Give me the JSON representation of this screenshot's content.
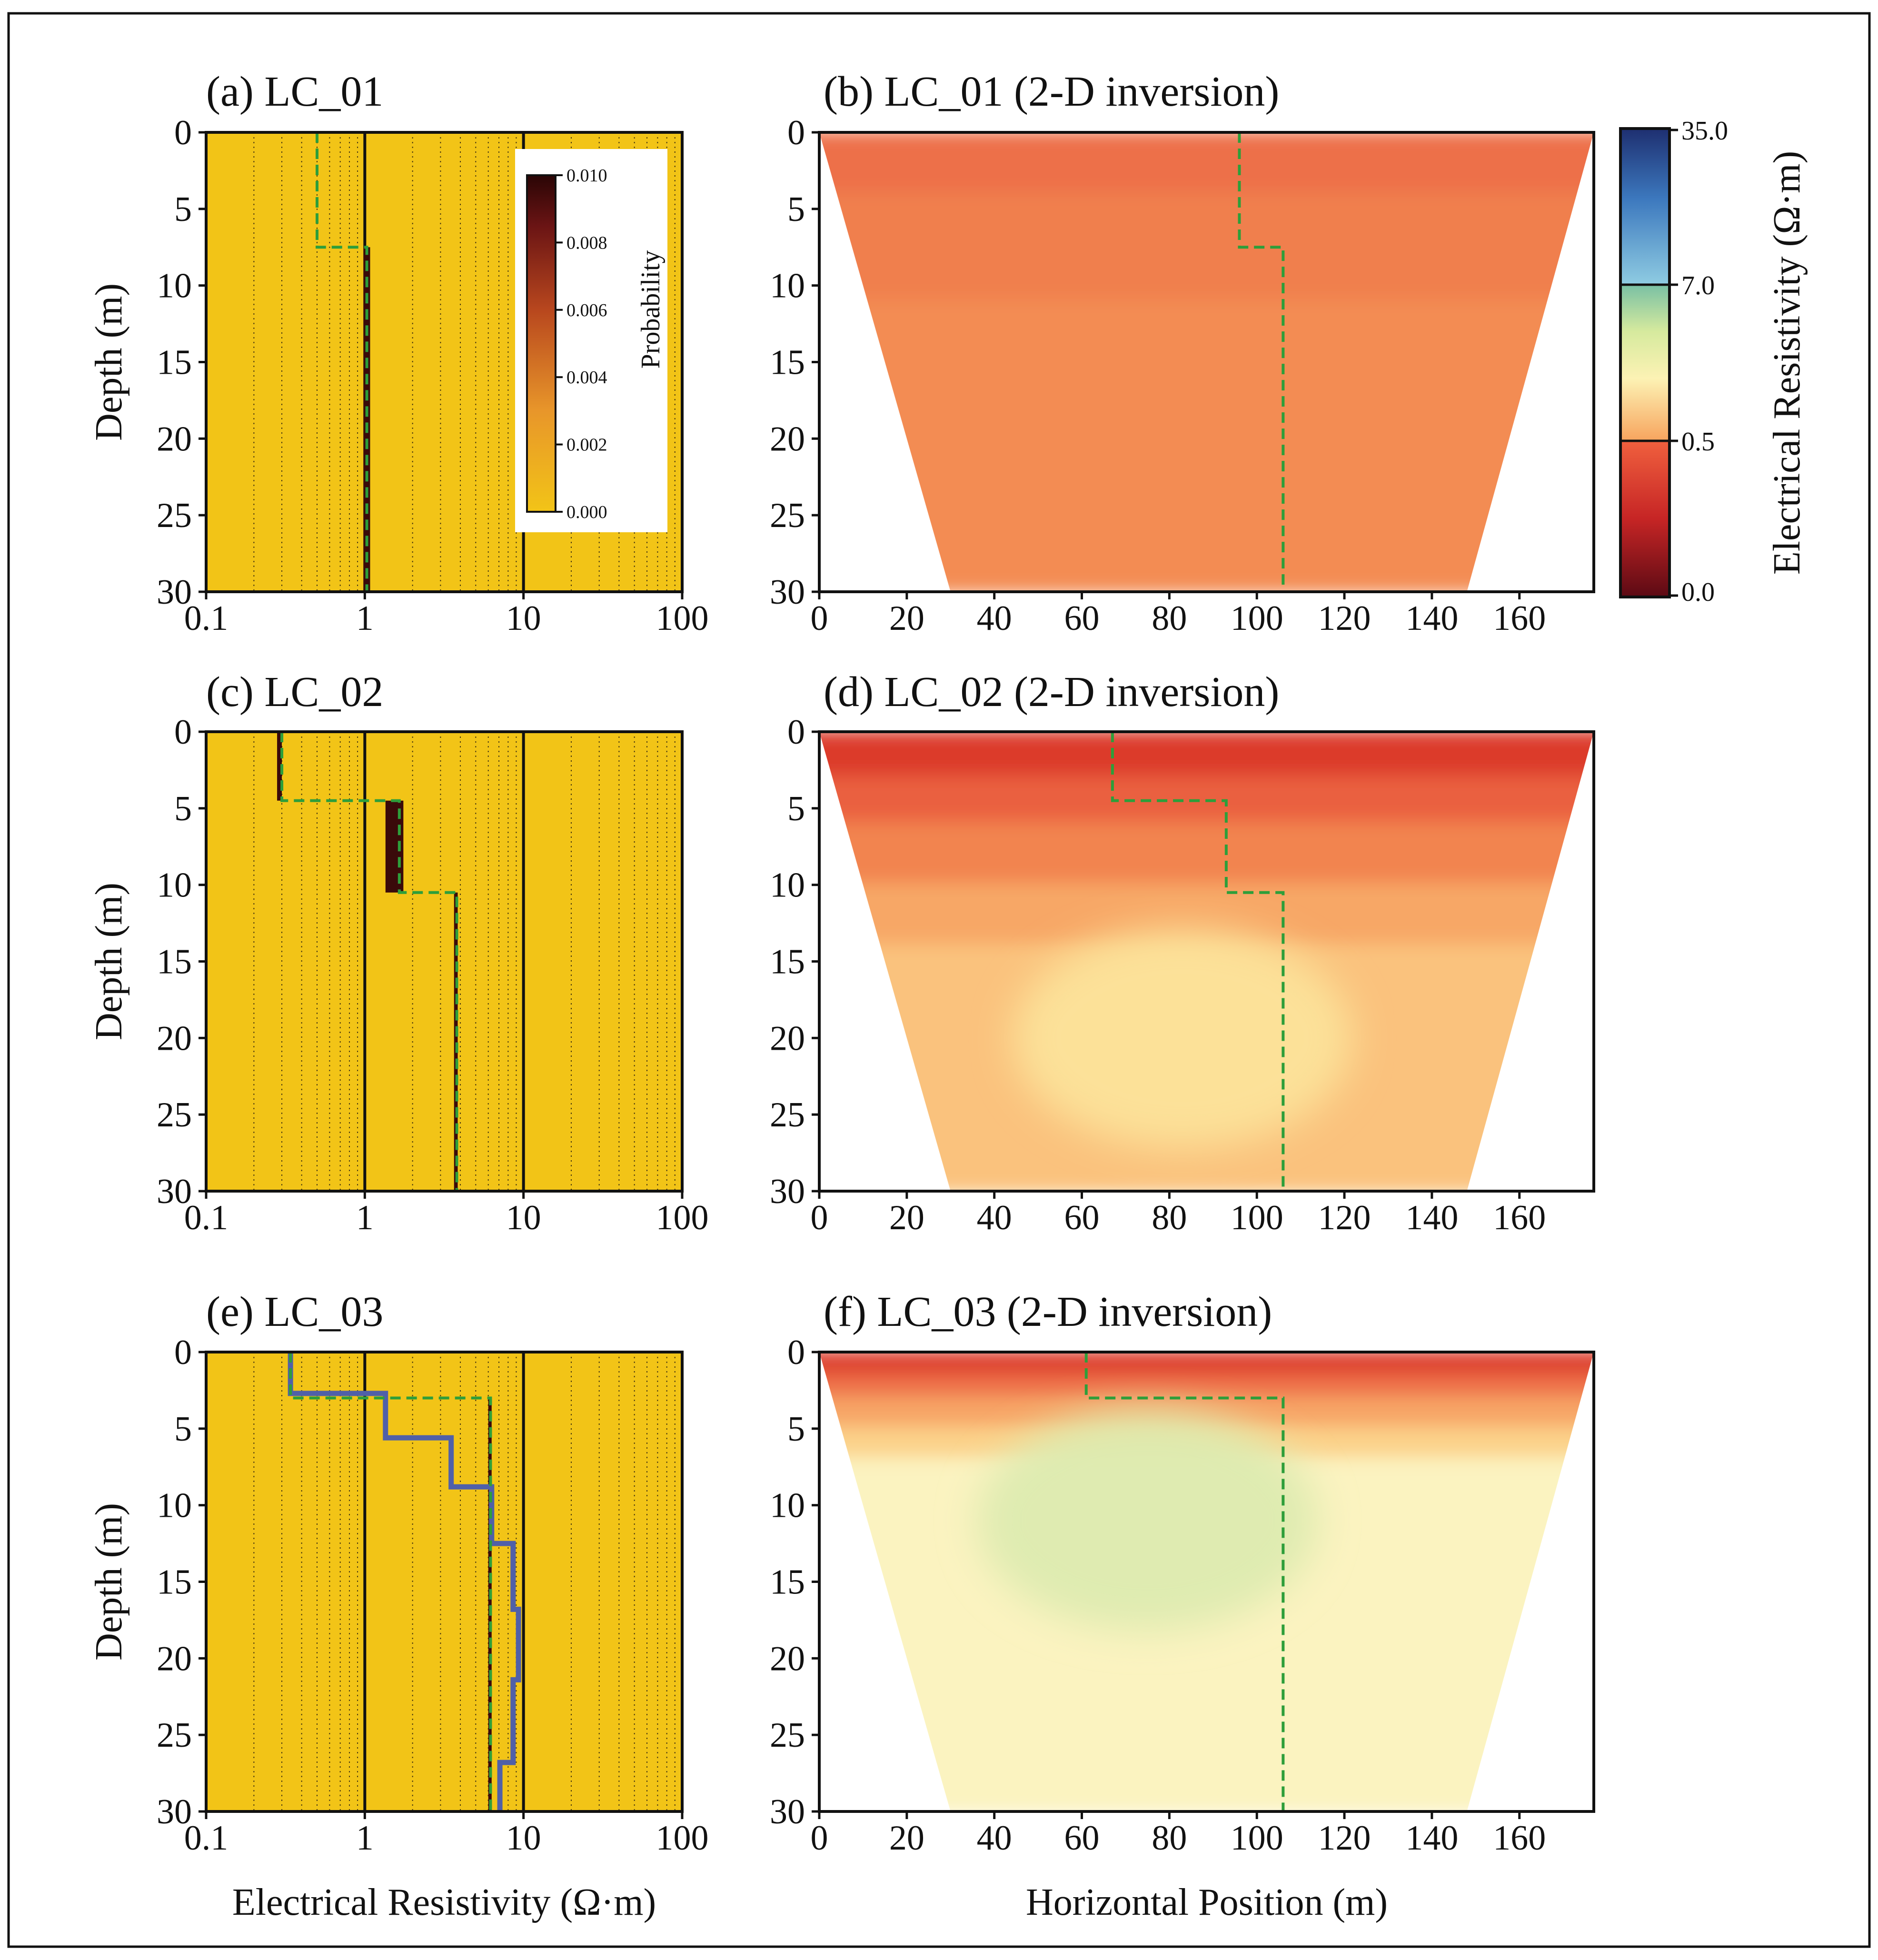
{
  "figure": {
    "x_label_left": "Electrical Resistivity (Ω·m)",
    "x_label_right": "Horizontal Position (m)",
    "depth_label": "Depth (m)",
    "colorbar_label": "Electrical Resistivity (Ω·m)",
    "colorbar_ticks": [
      "35.0",
      "7.0",
      "0.5",
      "0.0"
    ],
    "probability_label": "Probability",
    "probability_ticks": [
      "0.010",
      "0.008",
      "0.006",
      "0.004",
      "0.002",
      "0.000"
    ],
    "colors": {
      "probability_background": "#F2C417",
      "probability_peak": "#3A0A0A",
      "reference_model": "#2E9E3A",
      "well_log": "#5060A8"
    }
  },
  "chart_data": [
    {
      "id": "a",
      "type": "step-profile",
      "title": "(a) LC_01",
      "xscale": "log",
      "xlim": [
        0.1,
        100
      ],
      "xticks": [
        "0.1",
        "1",
        "10",
        "100"
      ],
      "ylim": [
        30,
        0
      ],
      "yticks": [
        "0",
        "5",
        "10",
        "15",
        "20",
        "25",
        "30"
      ],
      "ylabel": "Depth (m)",
      "reference_model": {
        "depth": [
          0,
          7.5,
          7.5,
          30
        ],
        "resistivity": [
          0.5,
          0.5,
          1.03,
          1.03
        ]
      },
      "posterior_peak": [
        {
          "depth_top": 7.5,
          "depth_bottom": 30,
          "res_min": 0.98,
          "res_max": 1.08
        }
      ]
    },
    {
      "id": "b",
      "type": "heatmap",
      "title": "(b) LC_01 (2-D inversion)",
      "xlim": [
        0,
        177
      ],
      "xticks": [
        "0",
        "20",
        "40",
        "60",
        "80",
        "100",
        "120",
        "140",
        "160"
      ],
      "ylim": [
        30,
        0
      ],
      "yticks": [
        "0",
        "5",
        "10",
        "15",
        "20",
        "25",
        "30"
      ],
      "section_top": [
        0,
        177
      ],
      "section_bottom": [
        30,
        148
      ],
      "layers": [
        {
          "depth_top": 0,
          "depth_bottom": 4,
          "color": "#ED6F48"
        },
        {
          "depth_top": 4,
          "depth_bottom": 11,
          "color": "#F07F4D"
        },
        {
          "depth_top": 11,
          "depth_bottom": 30,
          "color": "#F38C52"
        }
      ],
      "reference_model": {
        "x": [
          96,
          96,
          106,
          106
        ],
        "depth": [
          0,
          7.5,
          7.5,
          30
        ]
      }
    },
    {
      "id": "c",
      "type": "step-profile",
      "title": "(c) LC_02",
      "xscale": "log",
      "xlim": [
        0.1,
        100
      ],
      "xticks": [
        "0.1",
        "1",
        "10",
        "100"
      ],
      "ylim": [
        30,
        0
      ],
      "yticks": [
        "0",
        "5",
        "10",
        "15",
        "20",
        "25",
        "30"
      ],
      "ylabel": "Depth (m)",
      "reference_model": {
        "depth": [
          0,
          4.5,
          4.5,
          10.5,
          10.5,
          30
        ],
        "resistivity": [
          0.3,
          0.3,
          1.65,
          1.65,
          3.8,
          3.8
        ]
      },
      "posterior_peak": [
        {
          "depth_top": 0,
          "depth_bottom": 4.5,
          "res_min": 0.28,
          "res_max": 0.3
        },
        {
          "depth_top": 4.5,
          "depth_bottom": 10.5,
          "res_min": 1.35,
          "res_max": 1.75
        },
        {
          "depth_top": 10.5,
          "depth_bottom": 30,
          "res_min": 3.65,
          "res_max": 3.85
        }
      ]
    },
    {
      "id": "d",
      "type": "heatmap",
      "title": "(d) LC_02 (2-D inversion)",
      "xlim": [
        0,
        177
      ],
      "xticks": [
        "0",
        "20",
        "40",
        "60",
        "80",
        "100",
        "120",
        "140",
        "160"
      ],
      "ylim": [
        30,
        0
      ],
      "yticks": [
        "0",
        "5",
        "10",
        "15",
        "20",
        "25",
        "30"
      ],
      "section_top": [
        0,
        177
      ],
      "section_bottom": [
        30,
        148
      ],
      "layers": [
        {
          "depth_top": 0,
          "depth_bottom": 3,
          "color": "#DC3A2C"
        },
        {
          "depth_top": 3,
          "depth_bottom": 6,
          "color": "#EA6140"
        },
        {
          "depth_top": 6,
          "depth_bottom": 10,
          "color": "#F28450"
        },
        {
          "depth_top": 10,
          "depth_bottom": 14,
          "color": "#F7A766"
        },
        {
          "depth_top": 14,
          "depth_bottom": 30,
          "color": "#FAC27D"
        }
      ],
      "anomaly": {
        "center_x": 83,
        "center_depth": 20,
        "color": "#FCE39A"
      },
      "reference_model": {
        "x": [
          67,
          67,
          93,
          93,
          106,
          106
        ],
        "depth": [
          0,
          4.5,
          4.5,
          10.5,
          10.5,
          30
        ]
      }
    },
    {
      "id": "e",
      "type": "step-profile",
      "title": "(e) LC_03",
      "xscale": "log",
      "xlim": [
        0.1,
        100
      ],
      "xticks": [
        "0.1",
        "1",
        "10",
        "100"
      ],
      "ylim": [
        30,
        0
      ],
      "yticks": [
        "0",
        "5",
        "10",
        "15",
        "20",
        "25",
        "30"
      ],
      "ylabel": "Depth (m)",
      "reference_model": {
        "depth": [
          0,
          3,
          3,
          30
        ],
        "resistivity": [
          0.34,
          0.34,
          6.2,
          6.2
        ]
      },
      "posterior_peak": [
        {
          "depth_top": 3,
          "depth_bottom": 30,
          "res_min": 6.0,
          "res_max": 6.3
        }
      ],
      "well_log": {
        "depth": [
          0,
          2.7,
          2.7,
          5.6,
          5.6,
          8.8,
          8.8,
          12.5,
          12.5,
          16.8,
          16.8,
          21.4,
          21.4,
          26.8,
          26.8,
          30
        ],
        "resistivity": [
          0.34,
          0.34,
          1.35,
          1.35,
          3.5,
          3.5,
          6.3,
          6.3,
          8.6,
          8.6,
          9.3,
          9.3,
          8.6,
          8.6,
          7.1,
          7.1
        ]
      }
    },
    {
      "id": "f",
      "type": "heatmap",
      "title": "(f) LC_03 (2-D inversion)",
      "xlim": [
        0,
        177
      ],
      "xticks": [
        "0",
        "20",
        "40",
        "60",
        "80",
        "100",
        "120",
        "140",
        "160"
      ],
      "ylim": [
        30,
        0
      ],
      "yticks": [
        "0",
        "5",
        "10",
        "15",
        "20",
        "25",
        "30"
      ],
      "section_top": [
        0,
        177
      ],
      "section_bottom": [
        30,
        148
      ],
      "layers": [
        {
          "depth_top": 0,
          "depth_bottom": 1.5,
          "color": "#DC3A2C"
        },
        {
          "depth_top": 1.5,
          "depth_bottom": 3,
          "color": "#EE6F48"
        },
        {
          "depth_top": 3,
          "depth_bottom": 5,
          "color": "#F7A566"
        },
        {
          "depth_top": 5,
          "depth_bottom": 7,
          "color": "#FBD28A"
        },
        {
          "depth_top": 7,
          "depth_bottom": 30,
          "color": "#FBF3C0"
        }
      ],
      "anomaly": {
        "center_x": 75,
        "center_depth": 11,
        "color": "#DDEBB0"
      },
      "reference_model": {
        "x": [
          61,
          61,
          106,
          106
        ],
        "depth": [
          0,
          3,
          3,
          30
        ]
      }
    }
  ]
}
